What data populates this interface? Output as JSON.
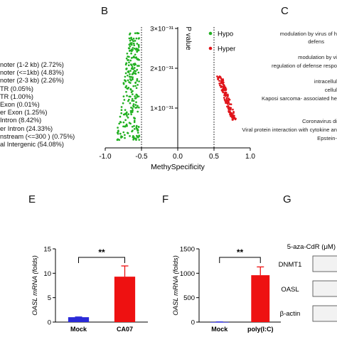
{
  "panels": {
    "B": "B",
    "C": "C",
    "E": "E",
    "F": "F",
    "G": "G"
  },
  "left_list": [
    "noter (1-2 kb)  (2.72%)",
    "noter (<=1kb)  (4.83%)",
    "noter (2-3 kb)  (2.26%)",
    "TR (0.05%)",
    "TR (1.00%)",
    "Exon (0.01%)",
    "er Exon (1.25%)",
    "Intron (8.42%)",
    "er Intron (24.33%)",
    "nstream (<=300 ) (0.75%)",
    "al Intergenic (54.08%)"
  ],
  "c_list": [
    "modulation by virus of h",
    "defens",
    "modulation by vi",
    "regulation of defense respo",
    "intracellul",
    "cellul",
    "Kaposi sarcoma- associated he",
    "Coronavirus di",
    "Viral protein interaction with cytokine an",
    "Epstein-"
  ],
  "colors": {
    "hypo": "#22b022",
    "hyper": "#e0141a",
    "mock_e": "#2a2ad8",
    "bar_red": "#ee1111"
  },
  "chart_data": [
    {
      "type": "scatter",
      "panel": "B",
      "xlabel": "MethySpecificity",
      "ylabel": "P value",
      "xlim": [
        -1.0,
        1.0
      ],
      "ylim": [
        0,
        3e-31
      ],
      "x_ticks": [
        "-1.0",
        "-0.5",
        "0.0",
        "0.5",
        "1.0"
      ],
      "y_ticks": [
        "1×10⁻³¹",
        "2×10⁻³¹",
        "3×10⁻³¹"
      ],
      "cutoffs": [
        -0.5,
        0.5
      ],
      "legend_position": "top-right",
      "series": [
        {
          "name": "Hypo",
          "x_range": [
            -0.85,
            -0.5
          ],
          "y_range": [
            2e-32,
            2.9e-31
          ]
        },
        {
          "name": "Hyper",
          "x_range": [
            0.5,
            0.79
          ],
          "y_range": [
            7e-32,
            1.8e-31
          ]
        }
      ]
    },
    {
      "type": "bar",
      "panel": "E",
      "ylabel": "OASL mRNA (folds)",
      "categories": [
        "Mock",
        "CA07"
      ],
      "values": [
        1.0,
        9.3
      ],
      "errors": [
        0.05,
        2.2
      ],
      "ylim": [
        0,
        15
      ],
      "y_ticks": [
        "0",
        "5",
        "10",
        "15"
      ],
      "significance": "**"
    },
    {
      "type": "bar",
      "panel": "F",
      "ylabel": "OASL mRNA (folds)",
      "categories": [
        "Mock",
        "poly(I:C)"
      ],
      "values": [
        1,
        960
      ],
      "errors": [
        2,
        170
      ],
      "ylim": [
        0,
        1500
      ],
      "y_ticks": [
        "0",
        "500",
        "1000",
        "1500"
      ],
      "significance": "**"
    }
  ],
  "panel_g": {
    "title": "5-aza-CdR (μM)",
    "rows": [
      "DNMT1",
      "OASL",
      "β-actin"
    ]
  }
}
